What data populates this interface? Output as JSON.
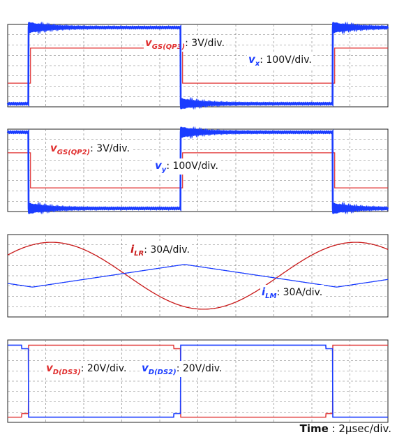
{
  "chart_data": [
    {
      "type": "line",
      "panel": 1,
      "series": [
        {
          "name": "vGS(QP3)",
          "sub": "GS(QP3)",
          "scale": "3V/div.",
          "color": "#e03030",
          "style": "square",
          "period": 8,
          "duty_start": 0.6,
          "high_level": 1.7,
          "low_level": -1.7
        },
        {
          "name": "vx",
          "sub": "x",
          "scale": "100V/div.",
          "color": "#1a3cff",
          "style": "square_ring",
          "period": 8,
          "start": 0.55,
          "high_level": 3.7,
          "low_level": -3.7
        }
      ]
    },
    {
      "type": "line",
      "panel": 2,
      "series": [
        {
          "name": "vGS(QP2)",
          "sub": "GS(QP2)",
          "scale": "3V/div.",
          "color": "#e03030",
          "style": "square",
          "period": 8,
          "duty_start": 4.6,
          "high_level": 1.7,
          "low_level": -1.7
        },
        {
          "name": "vy",
          "sub": "y",
          "scale": "100V/div.",
          "color": "#1a3cff",
          "style": "square_ring",
          "period": 8,
          "start": 4.55,
          "high_level": 3.7,
          "low_level": -3.7
        }
      ]
    },
    {
      "type": "line",
      "panel": 3,
      "series": [
        {
          "name": "iLR",
          "sub": "LR",
          "scale": "30A/div.",
          "color": "#c81818",
          "style": "sine",
          "period": 8,
          "amplitude": 3.25,
          "phase_zero": -0.85
        },
        {
          "name": "iLM",
          "sub": "LM",
          "scale": "30A/div.",
          "color": "#1a3cff",
          "style": "triangle",
          "period": 8,
          "amplitude": 1.1,
          "min_at": 0.65
        }
      ]
    },
    {
      "type": "line",
      "panel": 4,
      "series": [
        {
          "name": "vD(DS3)",
          "sub": "D(DS3)",
          "scale": "20V/div.",
          "color": "#e03030",
          "style": "diode",
          "period": 8,
          "start": 0.55,
          "high_level": 3.5,
          "low_level": -3.5
        },
        {
          "name": "vD(DS2)",
          "sub": "D(DS2)",
          "scale": "20V/div.",
          "color": "#1a3cff",
          "style": "diode",
          "period": 8,
          "start": 4.55,
          "high_level": 3.5,
          "low_level": -3.5
        }
      ]
    }
  ],
  "time": {
    "label": "Time",
    "scale": "2μsec/div."
  }
}
